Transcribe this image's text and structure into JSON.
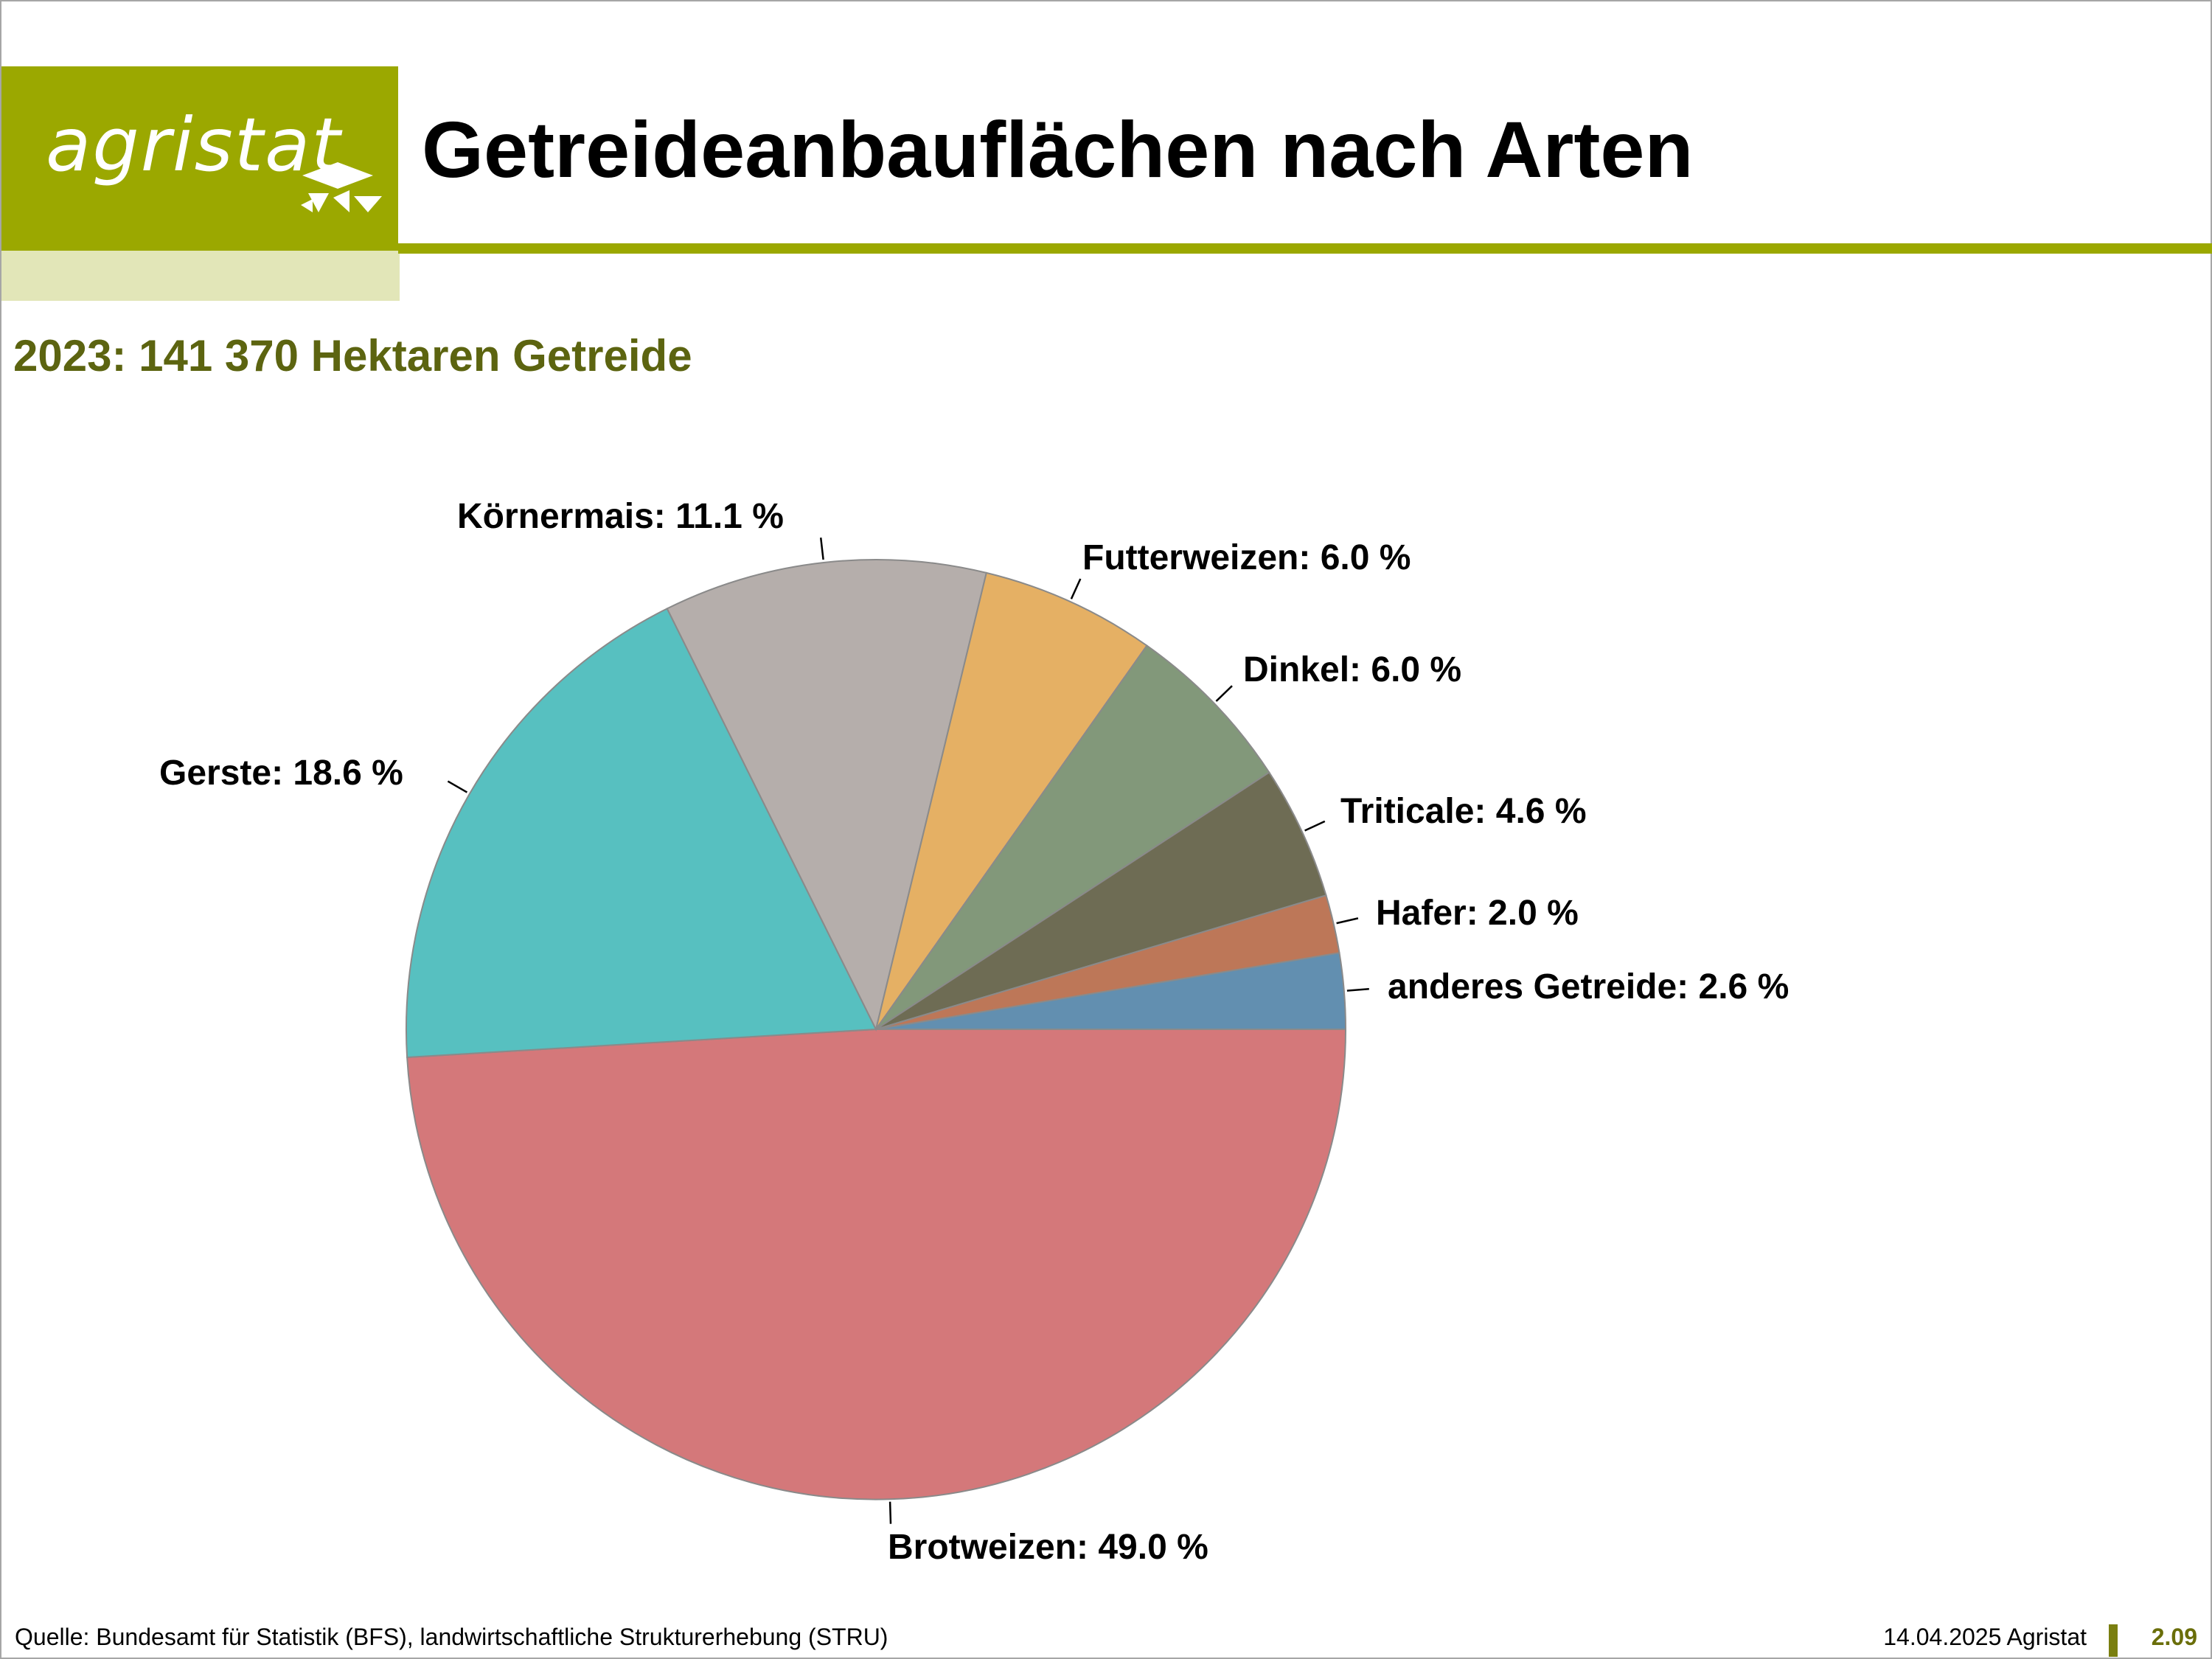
{
  "header": {
    "logo_text": "agristat",
    "title": "Getreideanbauflächen nach Arten",
    "subtitle": "2023: 141 370 Hektaren Getreide"
  },
  "footer": {
    "source": "Quelle: Bundesamt für Statistik (BFS), landwirtschaftliche Strukturerhebung (STRU)",
    "date": "14.04.2025 Agristat",
    "page": "2.09"
  },
  "colors": {
    "brand_green": "#9ba800",
    "brand_green_light": "#e2e6b8",
    "subtitle_color": "#5c6410"
  },
  "chart_data": {
    "type": "pie",
    "unit": "%",
    "start_angle_deg": 0,
    "direction": "clockwise",
    "slices": [
      {
        "label": "Brotweizen",
        "value": 49.0,
        "text": "Brotweizen: 49.0 %",
        "color": "#d4787a"
      },
      {
        "label": "Gerste",
        "value": 18.6,
        "text": "Gerste: 18.6 %",
        "color": "#57c0c0"
      },
      {
        "label": "Körnermais",
        "value": 11.1,
        "text": "Körnermais: 11.1 %",
        "color": "#b5aeab"
      },
      {
        "label": "Futterweizen",
        "value": 6.0,
        "text": "Futterweizen: 6.0 %",
        "color": "#e5b064"
      },
      {
        "label": "Dinkel",
        "value": 6.0,
        "text": "Dinkel: 6.0 %",
        "color": "#82987a"
      },
      {
        "label": "Triticale",
        "value": 4.6,
        "text": "Triticale: 4.6 %",
        "color": "#6e6c54"
      },
      {
        "label": "Hafer",
        "value": 2.0,
        "text": "Hafer: 2.0 %",
        "color": "#bd7758"
      },
      {
        "label": "anderes Getreide",
        "value": 2.6,
        "text": "anderes Getreide: 2.6 %",
        "color": "#628fb0"
      }
    ]
  }
}
